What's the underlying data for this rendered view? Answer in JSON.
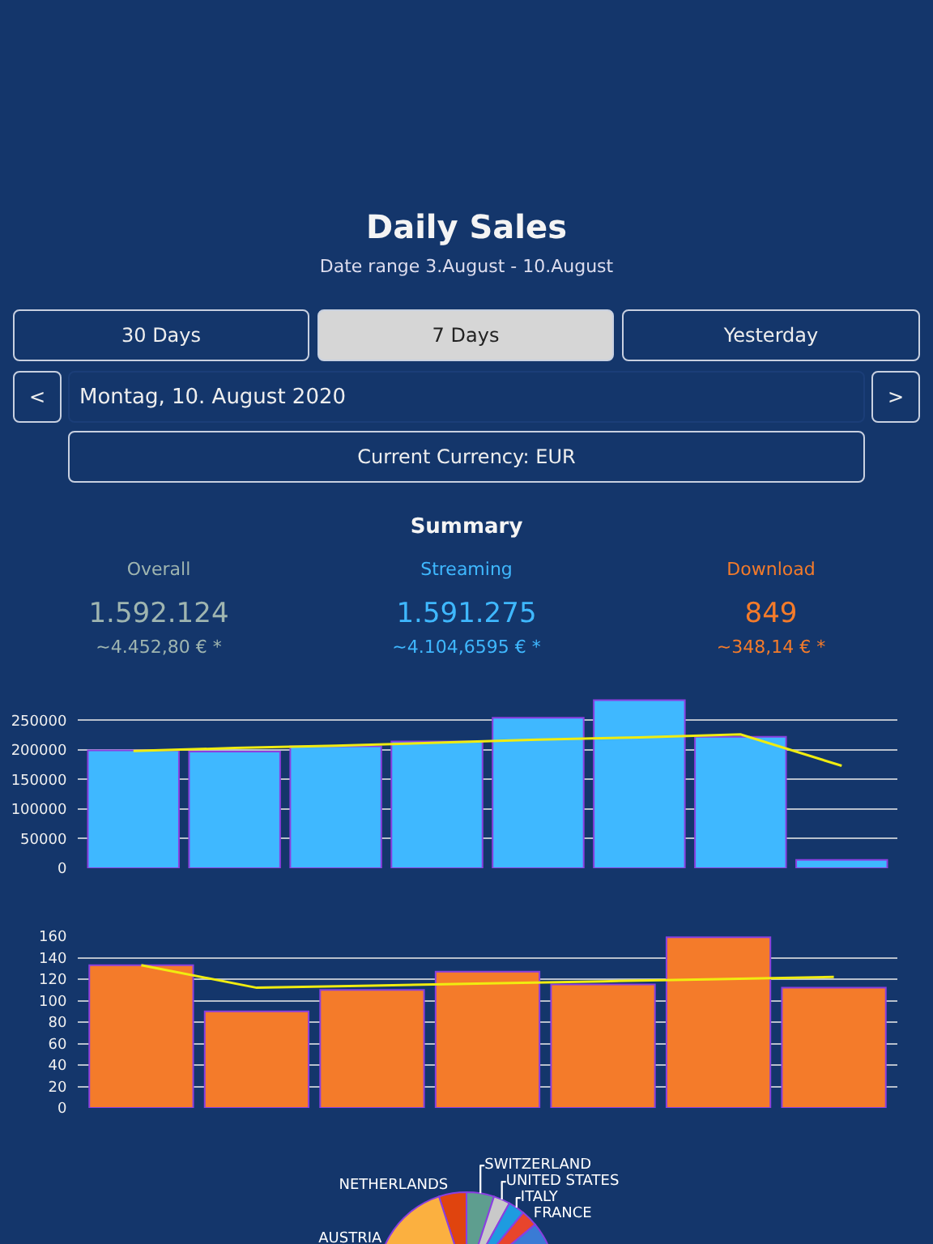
{
  "chart_data": [
    {
      "type": "other",
      "title": "Daily Sales",
      "subtitle": "Date range 3.August - 10.August",
      "annotations": [
        "30 Days",
        "7 Days",
        "Yesterday",
        "<",
        "Montag, 10. August 2020",
        ">",
        "Current Currency: EUR"
      ]
    },
    {
      "type": "other",
      "title": "Summary",
      "annotations": [
        "Overall",
        "1.592.124",
        "~4.452,80 € *",
        "Streaming",
        "1.591.275",
        "~4.104,6595 € *",
        "Download",
        "849",
        "~348,14 € *"
      ]
    },
    {
      "type": "bar",
      "categories": [
        null,
        null,
        null,
        null,
        null,
        null,
        null,
        null
      ],
      "tick_labels": "y",
      "grid": "y",
      "legend": false,
      "ylim": [
        0,
        290000
      ],
      "yticks": [
        0,
        50000,
        100000,
        150000,
        200000,
        250000
      ],
      "series": [
        {
          "type": "bar",
          "color": "#3fb8ff",
          "values": [
            199000,
            197000,
            206000,
            214000,
            254000,
            284000,
            222000,
            14000
          ]
        },
        {
          "type": "line",
          "color": "#f0ec10",
          "values": [
            198000,
            203000,
            207000,
            212000,
            217000,
            221000,
            226000,
            173000
          ]
        }
      ]
    },
    {
      "type": "bar",
      "categories": [
        null,
        null,
        null,
        null,
        null,
        null,
        null
      ],
      "tick_labels": "y",
      "grid": "y",
      "legend": false,
      "ylim": [
        0,
        160
      ],
      "yticks": [
        0,
        20,
        40,
        60,
        80,
        100,
        120,
        140,
        160
      ],
      "series": [
        {
          "type": "bar",
          "color": "#f47b2a",
          "values": [
            133,
            90,
            110,
            127,
            115,
            159,
            112
          ]
        },
        {
          "type": "line",
          "color": "#f0ec10",
          "values": [
            133,
            112,
            114,
            116,
            118,
            120,
            122
          ]
        }
      ]
    },
    {
      "type": "pie",
      "legend": false,
      "categories": [
        "NETHERLANDS",
        "SWITZERLAND",
        "UNITED STATES",
        "ITALY",
        "FRANCE",
        null,
        "AUSTRIA"
      ],
      "values": [
        5,
        5,
        3,
        3,
        3,
        56,
        25
      ],
      "colors": [
        "#e0440e",
        "#5e9e8f",
        "#c9c9c9",
        "#1e9be0",
        "#e8452c",
        "#3a7bd5",
        "#fbb040"
      ]
    }
  ]
}
